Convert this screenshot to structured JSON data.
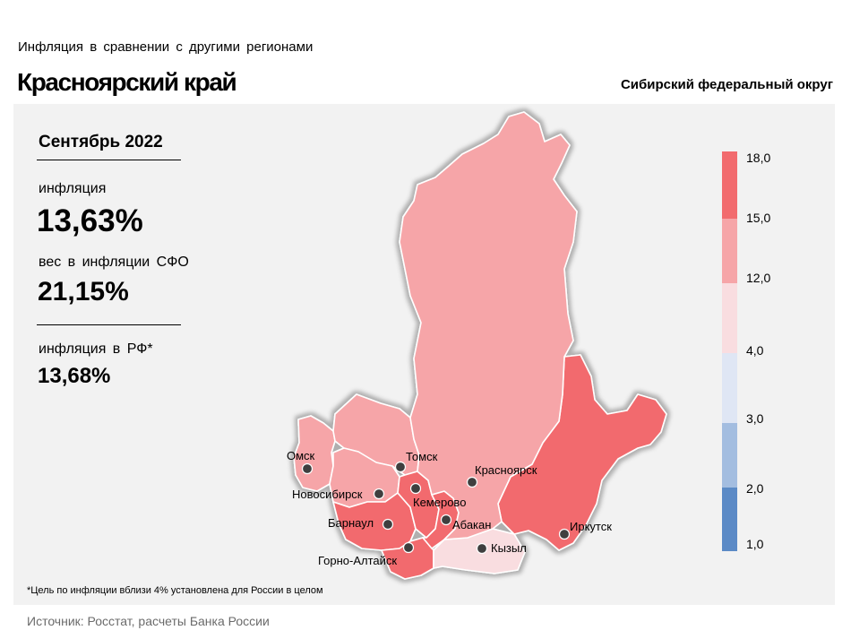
{
  "header": {
    "kicker": "Инфляция  в сравнении  с другими  регионами",
    "title": "Красноярский край",
    "district": "Сибирский федеральный округ"
  },
  "stats": {
    "period": "Сентябрь 2022",
    "inflation_label": "инфляция",
    "inflation_value": "13,63%",
    "weight_label": "вес в инфляции  СФО",
    "weight_value": "21,15%",
    "rf_label": "инфляция  в РФ*",
    "rf_value": "13,68%"
  },
  "footnote": "*Цель по инфляции вблизи 4% установлена для России в целом",
  "source": "Источник: Росстат, расчеты Банка России",
  "colors": {
    "band_4_12": "#f9dde0",
    "band_12_15": "#f6a5a8",
    "band_15_18": "#f26b6e",
    "band_3_4": "#dfe6f4",
    "band_2_3": "#a3bde0",
    "band_1_2": "#5b8ac6",
    "dot": "#3f3f3f"
  },
  "legend": {
    "ticks": [
      "18,0",
      "15,0",
      "12,0",
      "4,0",
      "3,0",
      "2,0",
      "1,0"
    ]
  },
  "regions": [
    {
      "name": "Красноярск",
      "band": "12-15"
    },
    {
      "name": "Иркутск",
      "band": "15-18"
    },
    {
      "name": "Кызыл",
      "band": "4-12"
    },
    {
      "name": "Абакан",
      "band": "15-18"
    },
    {
      "name": "Кемерово",
      "band": "15-18"
    },
    {
      "name": "Томск",
      "band": "12-15"
    },
    {
      "name": "Новосибирск",
      "band": "12-15"
    },
    {
      "name": "Омск",
      "band": "12-15"
    },
    {
      "name": "Барнаул",
      "band": "15-18"
    },
    {
      "name": "Горно-Алтайск",
      "band": "15-18"
    }
  ]
}
